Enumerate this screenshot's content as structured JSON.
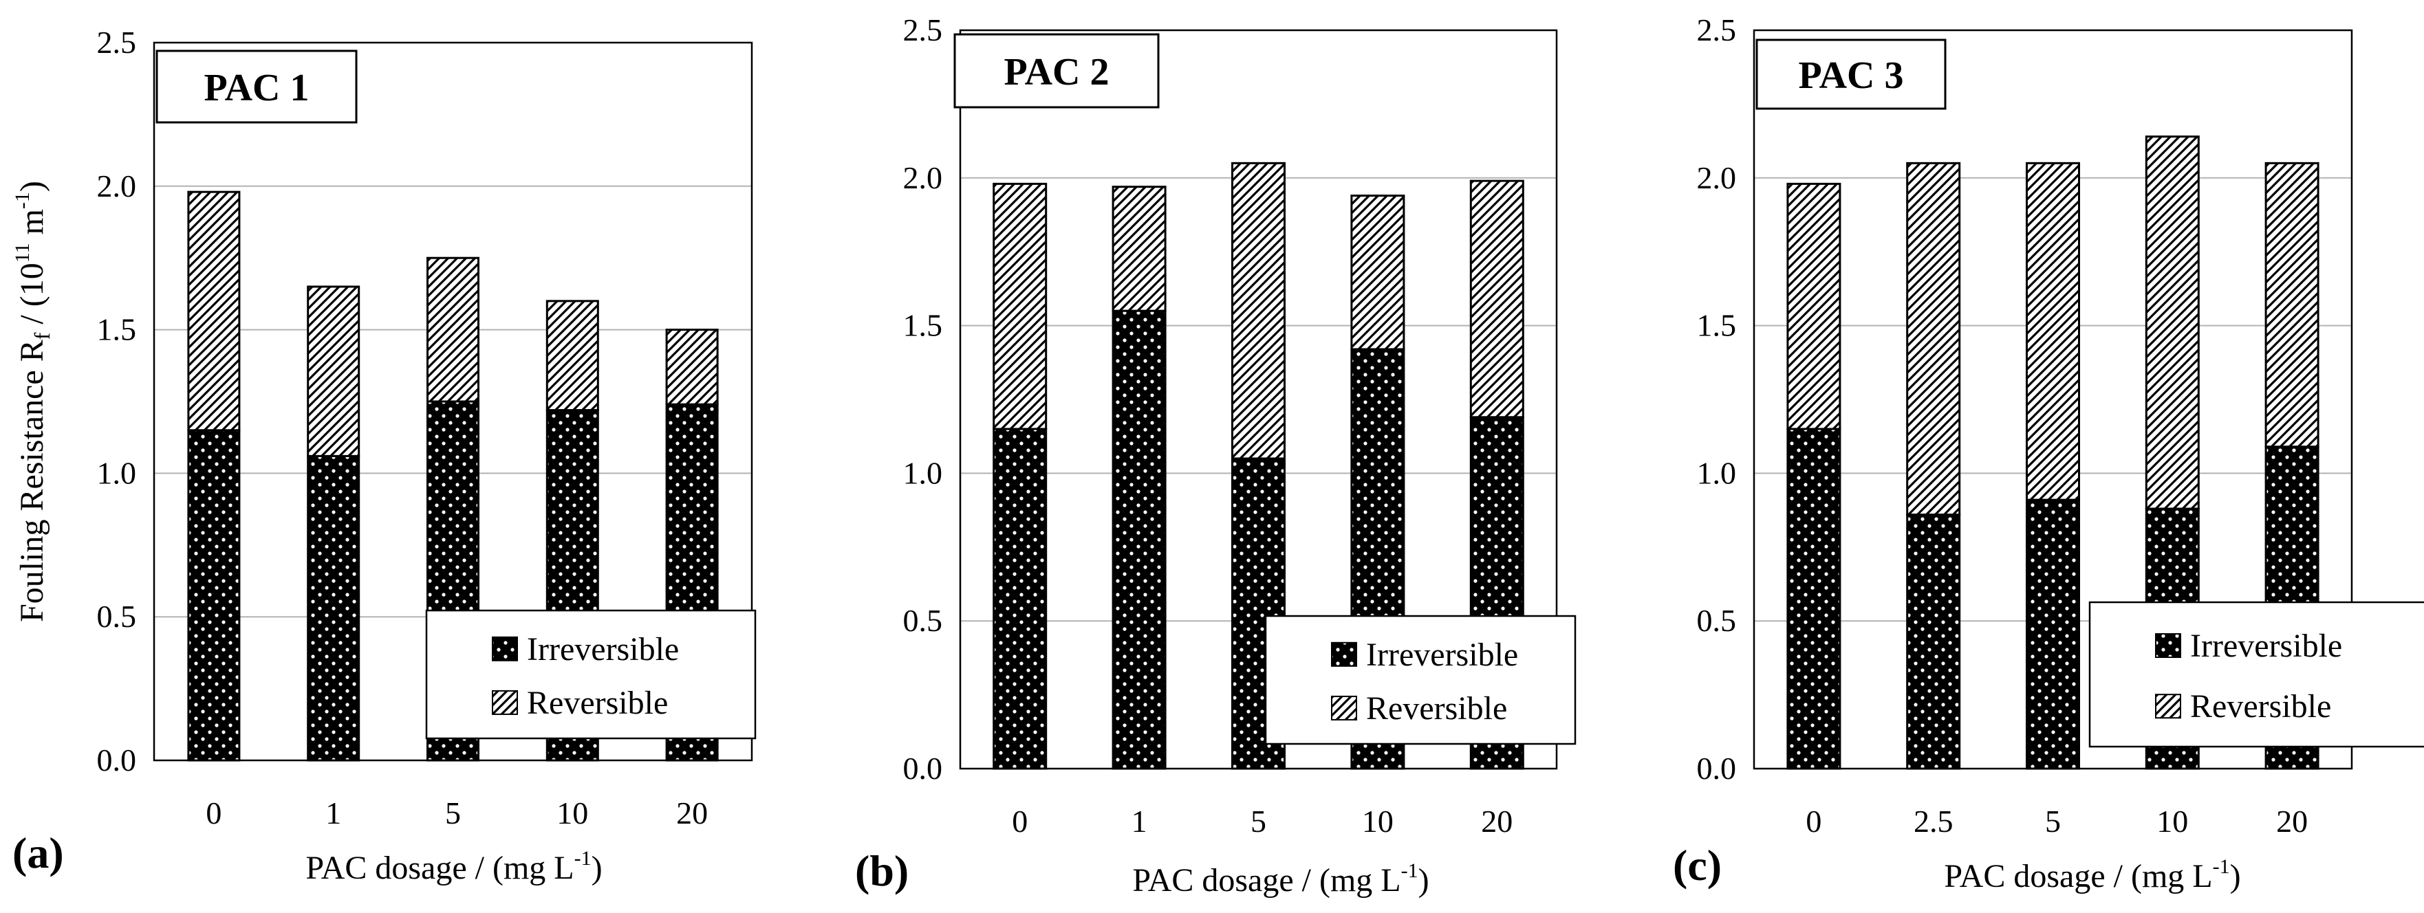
{
  "chart_data": [
    {
      "type": "bar",
      "stacked": true,
      "panel_label": "(a)",
      "title": "PAC 1",
      "xlabel": "PAC dosage / (mg L",
      "xlabel_sup": "-1",
      "xlabel_end": ")",
      "ylabel": "Fouling Resistance R",
      "ylabel_sub": "f",
      "ylabel_mid": " / (10",
      "ylabel_sup1": "11",
      "ylabel_mid2": " m",
      "ylabel_sup2": "-1",
      "ylabel_end": ")",
      "categories": [
        "0",
        "1",
        "5",
        "10",
        "20"
      ],
      "series": [
        {
          "name": "Irreversible",
          "values": [
            1.15,
            1.06,
            1.25,
            1.22,
            1.24
          ]
        },
        {
          "name": "Reversible",
          "values": [
            0.83,
            0.59,
            0.5,
            0.38,
            0.26
          ]
        }
      ],
      "ylim": [
        0,
        2.5
      ],
      "yticks": [
        "0.0",
        "0.5",
        "1.0",
        "1.5",
        "2.0",
        "2.5"
      ],
      "grid": true,
      "legend": "bottom-right"
    },
    {
      "type": "bar",
      "stacked": true,
      "panel_label": "(b)",
      "title": "PAC 2",
      "xlabel": "PAC dosage / (mg L",
      "xlabel_sup": "-1",
      "xlabel_end": ")",
      "categories": [
        "0",
        "1",
        "5",
        "10",
        "20"
      ],
      "series": [
        {
          "name": "Irreversible",
          "values": [
            1.15,
            1.55,
            1.05,
            1.42,
            1.19
          ]
        },
        {
          "name": "Reversible",
          "values": [
            0.83,
            0.42,
            1.0,
            0.52,
            0.8
          ]
        }
      ],
      "ylim": [
        0,
        2.5
      ],
      "yticks": [
        "0.0",
        "0.5",
        "1.0",
        "1.5",
        "2.0",
        "2.5"
      ],
      "grid": true,
      "legend": "bottom-right"
    },
    {
      "type": "bar",
      "stacked": true,
      "panel_label": "(c)",
      "title": "PAC 3",
      "xlabel": "PAC dosage / (mg L",
      "xlabel_sup": "-1",
      "xlabel_end": ")",
      "categories": [
        "0",
        "2.5",
        "5",
        "10",
        "20"
      ],
      "series": [
        {
          "name": "Irreversible",
          "values": [
            1.15,
            0.86,
            0.91,
            0.88,
            1.09
          ]
        },
        {
          "name": "Reversible",
          "values": [
            0.83,
            1.19,
            1.14,
            1.26,
            0.96
          ]
        }
      ],
      "ylim": [
        0,
        2.5
      ],
      "yticks": [
        "0.0",
        "0.5",
        "1.0",
        "1.5",
        "2.0",
        "2.5"
      ],
      "grid": true,
      "legend": "bottom-right"
    }
  ]
}
